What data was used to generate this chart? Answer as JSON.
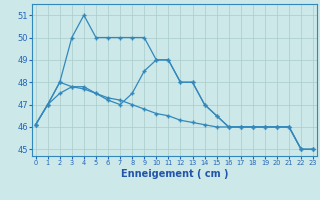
{
  "line1_x": [
    0,
    1,
    2,
    3,
    4,
    5,
    6,
    7,
    8,
    9,
    10,
    11,
    12,
    13,
    14,
    15,
    16,
    17,
    18,
    19,
    20,
    21,
    22,
    23
  ],
  "line1_y": [
    46.1,
    47.0,
    48.0,
    50.0,
    51.0,
    50.0,
    50.0,
    50.0,
    50.0,
    50.0,
    49.0,
    49.0,
    48.0,
    48.0,
    47.0,
    46.5,
    46.0,
    46.0,
    46.0,
    46.0,
    46.0,
    46.0,
    45.0,
    45.0
  ],
  "line2_x": [
    0,
    1,
    2,
    3,
    4,
    5,
    6,
    7,
    8,
    9,
    10,
    11,
    12,
    13,
    14,
    15,
    16,
    17,
    18,
    19,
    20,
    21,
    22,
    23
  ],
  "line2_y": [
    46.1,
    47.0,
    47.5,
    47.8,
    47.8,
    47.5,
    47.2,
    47.0,
    47.5,
    48.5,
    49.0,
    49.0,
    48.0,
    48.0,
    47.0,
    46.5,
    46.0,
    46.0,
    46.0,
    46.0,
    46.0,
    46.0,
    45.0,
    45.0
  ],
  "line3_x": [
    0,
    1,
    2,
    3,
    4,
    5,
    6,
    7,
    8,
    9,
    10,
    11,
    12,
    13,
    14,
    15,
    16,
    17,
    18,
    19,
    20,
    21,
    22,
    23
  ],
  "line3_y": [
    46.1,
    47.0,
    48.0,
    47.8,
    47.7,
    47.5,
    47.3,
    47.2,
    47.0,
    46.8,
    46.6,
    46.5,
    46.3,
    46.2,
    46.1,
    46.0,
    46.0,
    46.0,
    46.0,
    46.0,
    46.0,
    46.0,
    45.0,
    45.0
  ],
  "bg_color": "#cce8e8",
  "line_color": "#3388bb",
  "xlabel": "Enneigement ( cm )",
  "xlabel_color": "#2255aa",
  "tick_color": "#2266bb",
  "grid_color": "#aacccc",
  "ylim": [
    44.7,
    51.5
  ],
  "xlim": [
    -0.3,
    23.3
  ],
  "yticks": [
    45,
    46,
    47,
    48,
    49,
    50,
    51
  ],
  "xticks": [
    0,
    1,
    2,
    3,
    4,
    5,
    6,
    7,
    8,
    9,
    10,
    11,
    12,
    13,
    14,
    15,
    16,
    17,
    18,
    19,
    20,
    21,
    22,
    23
  ]
}
